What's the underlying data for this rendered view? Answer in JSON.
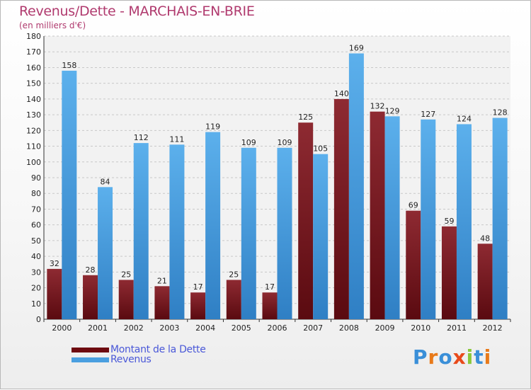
{
  "title": "Revenus/Dette - MARCHAIS-EN-BRIE",
  "subtitle": "(en milliers d'€)",
  "colors": {
    "debt": "#7a1f26",
    "revenue": "#4a9fe0",
    "title": "#b03a6e",
    "legend_text": "#4a58d8"
  },
  "legend": [
    {
      "label": "Montant de la Dette",
      "color": "#6e0a10"
    },
    {
      "label": "Revenus",
      "color": "#4a9fe0"
    }
  ],
  "logo": {
    "text": "Proxiti",
    "letter_colors": [
      "#3a8fd8",
      "#e87a1a",
      "#3a8fd8",
      "#e84a1a",
      "#8ac83a",
      "#3a8fd8",
      "#e87a1a"
    ]
  },
  "chart_data": {
    "type": "bar",
    "title": "Revenus/Dette - MARCHAIS-EN-BRIE",
    "subtitle": "(en milliers d'€)",
    "categories": [
      "2000",
      "2001",
      "2002",
      "2003",
      "2004",
      "2005",
      "2006",
      "2007",
      "2008",
      "2009",
      "2010",
      "2011",
      "2012"
    ],
    "series": [
      {
        "name": "Montant de la Dette",
        "values": [
          32,
          28,
          25,
          21,
          17,
          25,
          17,
          125,
          140,
          132,
          69,
          59,
          48
        ]
      },
      {
        "name": "Revenus",
        "values": [
          158,
          84,
          112,
          111,
          119,
          109,
          109,
          105,
          169,
          129,
          127,
          124,
          128
        ]
      }
    ],
    "yticks": [
      0,
      10,
      20,
      30,
      40,
      50,
      60,
      70,
      80,
      90,
      100,
      110,
      120,
      130,
      140,
      150,
      160,
      170,
      180
    ],
    "ylim": [
      0,
      180
    ],
    "grid": true,
    "legend_position": "bottom-left"
  }
}
